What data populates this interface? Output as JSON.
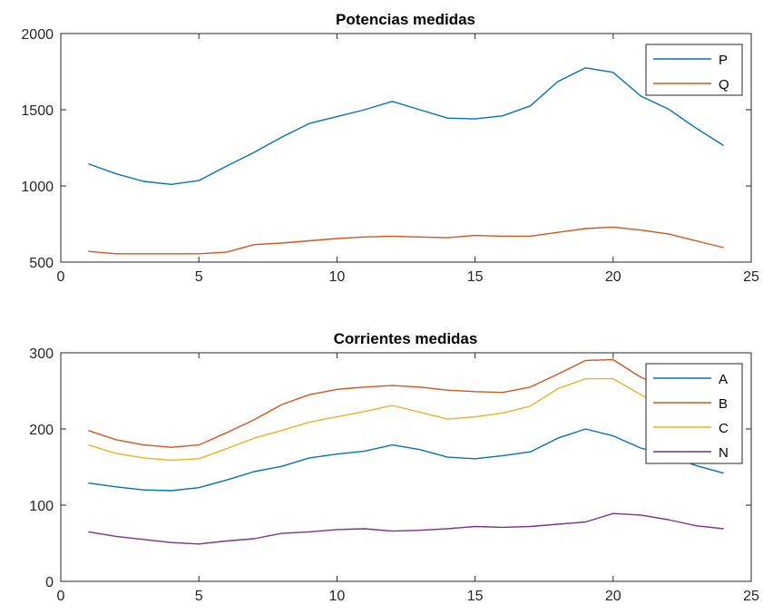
{
  "chart_data": [
    {
      "type": "line",
      "title": "Potencias medidas",
      "xlim": [
        0,
        25
      ],
      "ylim": [
        500,
        2000
      ],
      "xticks": [
        0,
        5,
        10,
        15,
        20,
        25
      ],
      "yticks": [
        500,
        1000,
        1500,
        2000
      ],
      "legend": "top-right",
      "x": [
        1,
        2,
        3,
        4,
        5,
        6,
        7,
        8,
        9,
        10,
        11,
        12,
        13,
        14,
        15,
        16,
        17,
        18,
        19,
        20,
        21,
        22,
        23,
        24
      ],
      "series": [
        {
          "name": "P",
          "color": "#0072BD",
          "values": [
            1145,
            1080,
            1030,
            1010,
            1035,
            1130,
            1220,
            1320,
            1410,
            1455,
            1500,
            1555,
            1500,
            1445,
            1440,
            1460,
            1525,
            1685,
            1775,
            1745,
            1590,
            1505,
            1380,
            1265
          ]
        },
        {
          "name": "Q",
          "color": "#D95319",
          "values": [
            570,
            555,
            555,
            555,
            555,
            565,
            615,
            625,
            640,
            655,
            665,
            670,
            665,
            660,
            675,
            670,
            670,
            695,
            720,
            730,
            710,
            685,
            640,
            595
          ]
        }
      ]
    },
    {
      "type": "line",
      "title": "Corrientes medidas",
      "xlim": [
        0,
        25
      ],
      "ylim": [
        0,
        300
      ],
      "xticks": [
        0,
        5,
        10,
        15,
        20,
        25
      ],
      "yticks": [
        0,
        100,
        200,
        300
      ],
      "legend": "top-right",
      "x": [
        1,
        2,
        3,
        4,
        5,
        6,
        7,
        8,
        9,
        10,
        11,
        12,
        13,
        14,
        15,
        16,
        17,
        18,
        19,
        20,
        21,
        22,
        23,
        24
      ],
      "series": [
        {
          "name": "A",
          "color": "#0072BD",
          "values": [
            129,
            124,
            120,
            119,
            123,
            133,
            144,
            151,
            162,
            167,
            171,
            179,
            173,
            163,
            161,
            165,
            170,
            188,
            200,
            191,
            175,
            165,
            152,
            142
          ]
        },
        {
          "name": "B",
          "color": "#D95319",
          "values": [
            198,
            186,
            179,
            176,
            179,
            195,
            212,
            232,
            245,
            252,
            255,
            257,
            255,
            251,
            249,
            248,
            255,
            272,
            290,
            291,
            268,
            253,
            244,
            242
          ]
        },
        {
          "name": "C",
          "color": "#EDB120",
          "values": [
            179,
            168,
            162,
            159,
            161,
            174,
            188,
            198,
            209,
            216,
            223,
            231,
            222,
            213,
            216,
            221,
            230,
            253,
            266,
            266,
            245,
            225,
            212,
            203
          ]
        },
        {
          "name": "N",
          "color": "#7E2F8E",
          "values": [
            65,
            59,
            55,
            51,
            49,
            53,
            56,
            63,
            65,
            68,
            69,
            66,
            67,
            69,
            72,
            71,
            72,
            75,
            78,
            89,
            87,
            81,
            73,
            69
          ]
        }
      ]
    }
  ]
}
